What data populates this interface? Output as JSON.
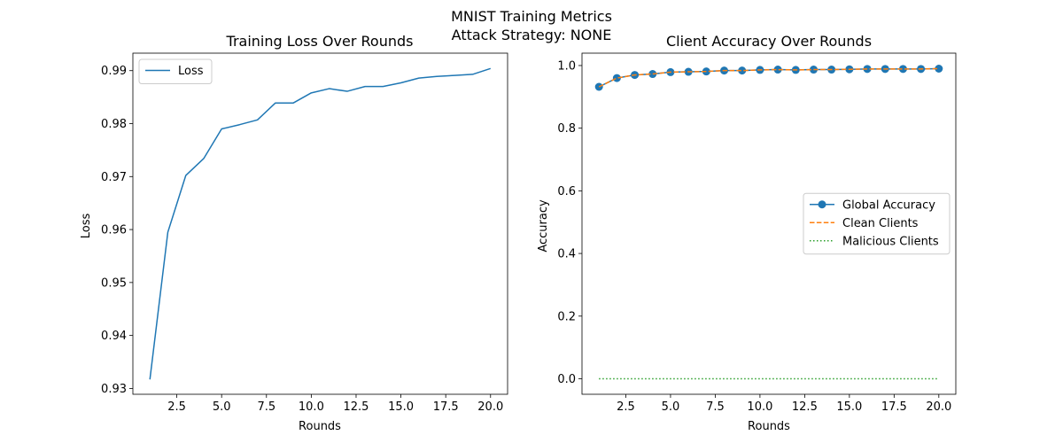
{
  "figure": {
    "suptitle_line1": "MNIST Training Metrics",
    "suptitle_line2": "Attack Strategy: NONE"
  },
  "chart_data": [
    {
      "type": "line",
      "title": "Training Loss Over Rounds",
      "xlabel": "Rounds",
      "ylabel": "Loss",
      "xlim": [
        0.05,
        20.95
      ],
      "ylim": [
        0.9289,
        0.9933
      ],
      "xticks": [
        2.5,
        5.0,
        7.5,
        10.0,
        12.5,
        15.0,
        17.5,
        20.0
      ],
      "xtick_labels": [
        "2.5",
        "5.0",
        "7.5",
        "10.0",
        "12.5",
        "15.0",
        "17.5",
        "20.0"
      ],
      "yticks": [
        0.93,
        0.94,
        0.95,
        0.96,
        0.97,
        0.98,
        0.99
      ],
      "ytick_labels": [
        "0.93",
        "0.94",
        "0.95",
        "0.96",
        "0.97",
        "0.98",
        "0.99"
      ],
      "legend_position": "upper-left",
      "grid": false,
      "x": [
        1,
        2,
        3,
        4,
        5,
        6,
        7,
        8,
        9,
        10,
        11,
        12,
        13,
        14,
        15,
        16,
        17,
        18,
        19,
        20
      ],
      "series": [
        {
          "name": "Loss",
          "color": "#1f77b4",
          "style": "solid",
          "values": [
            0.9317,
            0.9595,
            0.9702,
            0.9734,
            0.979,
            0.9798,
            0.9807,
            0.9839,
            0.9839,
            0.9858,
            0.9866,
            0.9861,
            0.987,
            0.987,
            0.9877,
            0.9886,
            0.9889,
            0.9891,
            0.9893,
            0.9904
          ]
        }
      ]
    },
    {
      "type": "line",
      "title": "Client Accuracy Over Rounds",
      "xlabel": "Rounds",
      "ylabel": "Accuracy",
      "xlim": [
        0.05,
        20.95
      ],
      "ylim": [
        -0.0495,
        1.0395
      ],
      "xticks": [
        2.5,
        5.0,
        7.5,
        10.0,
        12.5,
        15.0,
        17.5,
        20.0
      ],
      "xtick_labels": [
        "2.5",
        "5.0",
        "7.5",
        "10.0",
        "12.5",
        "15.0",
        "17.5",
        "20.0"
      ],
      "yticks": [
        0.0,
        0.2,
        0.4,
        0.6,
        0.8,
        1.0
      ],
      "ytick_labels": [
        "0.0",
        "0.2",
        "0.4",
        "0.6",
        "0.8",
        "1.0"
      ],
      "legend_position": "center-right",
      "grid": false,
      "x": [
        1,
        2,
        3,
        4,
        5,
        6,
        7,
        8,
        9,
        10,
        11,
        12,
        13,
        14,
        15,
        16,
        17,
        18,
        19,
        20
      ],
      "series": [
        {
          "name": "Global Accuracy",
          "color": "#1f77b4",
          "style": "solid",
          "marker": "circle",
          "values": [
            0.932,
            0.96,
            0.97,
            0.973,
            0.979,
            0.98,
            0.981,
            0.984,
            0.984,
            0.986,
            0.987,
            0.986,
            0.987,
            0.987,
            0.988,
            0.989,
            0.989,
            0.989,
            0.989,
            0.99
          ]
        },
        {
          "name": "Clean Clients",
          "color": "#ff7f0e",
          "style": "dashed",
          "values": [
            0.932,
            0.96,
            0.97,
            0.973,
            0.979,
            0.98,
            0.981,
            0.984,
            0.984,
            0.986,
            0.987,
            0.986,
            0.987,
            0.987,
            0.988,
            0.989,
            0.989,
            0.989,
            0.989,
            0.99
          ]
        },
        {
          "name": "Malicious Clients",
          "color": "#2ca02c",
          "style": "dotted",
          "values": [
            0,
            0,
            0,
            0,
            0,
            0,
            0,
            0,
            0,
            0,
            0,
            0,
            0,
            0,
            0,
            0,
            0,
            0,
            0,
            0
          ]
        }
      ]
    }
  ]
}
